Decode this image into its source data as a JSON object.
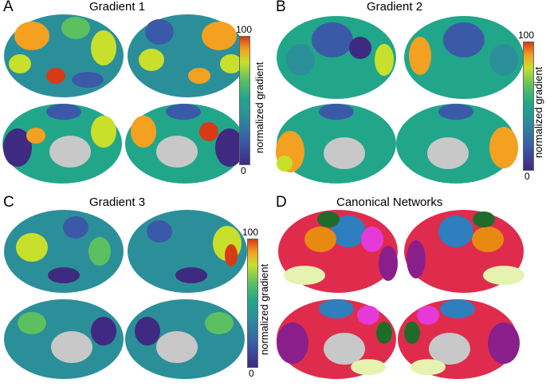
{
  "panels": [
    {
      "letter": "A",
      "title": "Gradient 1",
      "colorbar": {
        "max": "100",
        "min": "0",
        "label": "normalized gradient"
      }
    },
    {
      "letter": "B",
      "title": "Gradient 2",
      "colorbar": {
        "max": "100",
        "min": "0",
        "label": "normalized gradient"
      }
    },
    {
      "letter": "C",
      "title": "Gradient 3",
      "colorbar": {
        "max": "100",
        "min": "0",
        "label": "normalized gradient"
      }
    },
    {
      "letter": "D",
      "title": "Canonical Networks"
    }
  ],
  "colors": {
    "gradient_scale": [
      "#3e2a80",
      "#3a5aa8",
      "#2b8f9a",
      "#22a68a",
      "#5cc061",
      "#c8e02b",
      "#f4a021",
      "#d63b16"
    ],
    "network_palette": [
      "#e02c4c",
      "#2f7ebd",
      "#e88a12",
      "#1f6b2a",
      "#e63ad8",
      "#8a1f8c",
      "#e6f2b0"
    ],
    "subcortex": "#c8c8c8"
  }
}
